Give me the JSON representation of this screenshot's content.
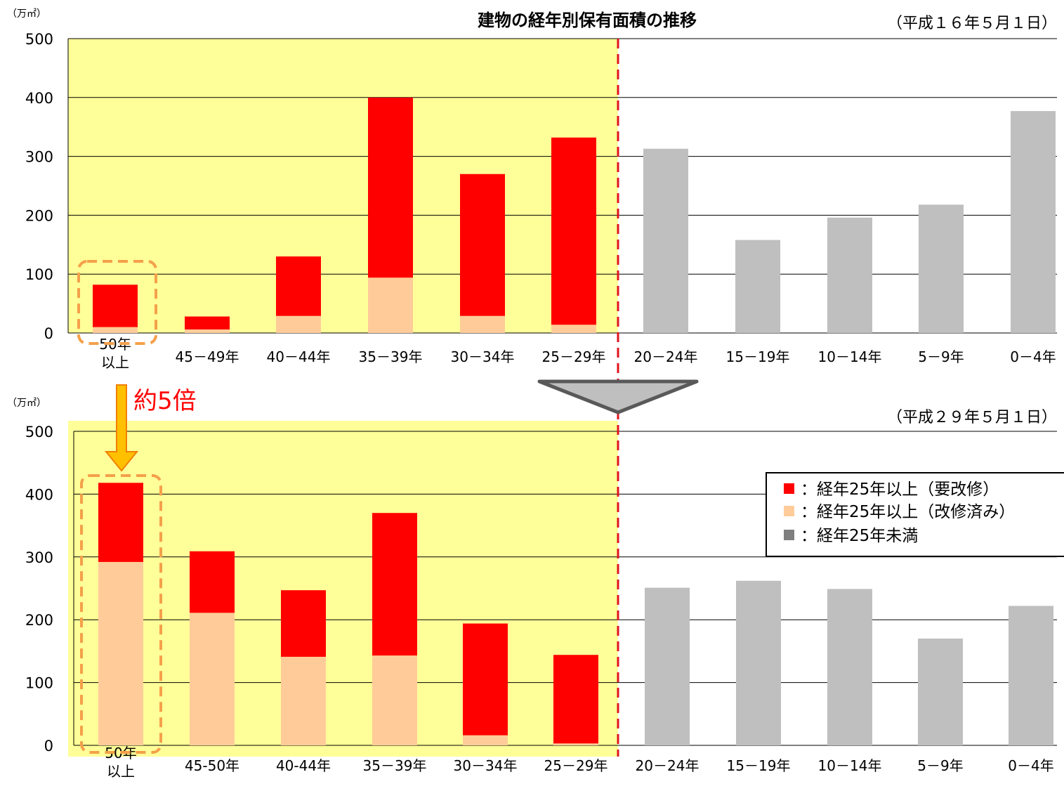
{
  "title": "建物の経年別保有面積の推移",
  "colors": {
    "needs_renovation": "#ff0000",
    "renovated": "#ffcc99",
    "under25": "#bfbfbf",
    "highlight_bg": "#ffff99",
    "dashed_line": "#e0141e",
    "box_outline": "#f4a04a",
    "arrow_fill": "#ffc000",
    "arrow_stroke": "#f08000",
    "annotation": "#ff0000",
    "gridline": "#000000"
  },
  "legend": {
    "items": [
      {
        "symbol": "■",
        "label": "：経年25年以上（要改修）",
        "color": "#ff0000"
      },
      {
        "symbol": "■",
        "label": "：経年25年以上（改修済み）",
        "color": "#ffcc99"
      },
      {
        "symbol": "■",
        "label": "：経年25年未満",
        "color": "#7f7f7f"
      }
    ]
  },
  "annotation": {
    "text": "約5倍"
  },
  "chart_data": [
    {
      "type": "bar",
      "stacked": true,
      "title": "建物の経年別保有面積の推移",
      "date_label": "（平成１６年５月１日）",
      "unit_label": "（万㎡）",
      "ylim": [
        0,
        500
      ],
      "yticks": [
        0,
        100,
        200,
        300,
        400,
        500
      ],
      "grid": true,
      "categories": [
        "50年\n以上",
        "45－49年",
        "40－44年",
        "35－39年",
        "30－34年",
        "25－29年",
        "20－24年",
        "15－19年",
        "10－14年",
        "5－9年",
        "0－4年"
      ],
      "series": [
        {
          "key": "renovated",
          "values": [
            10,
            6,
            29,
            94,
            29,
            14,
            0,
            0,
            0,
            0,
            0
          ]
        },
        {
          "key": "needs_renovation",
          "values": [
            72,
            22,
            101,
            306,
            241,
            318,
            0,
            0,
            0,
            0,
            0
          ]
        },
        {
          "key": "under25",
          "values": [
            0,
            0,
            0,
            0,
            0,
            0,
            313,
            158,
            196,
            218,
            377
          ]
        }
      ]
    },
    {
      "type": "bar",
      "stacked": true,
      "date_label": "（平成２９年５月１日）",
      "unit_label": "（万㎡）",
      "ylim": [
        0,
        500
      ],
      "yticks": [
        0,
        100,
        200,
        300,
        400,
        500
      ],
      "grid": true,
      "categories": [
        "50年\n以上",
        "45-50年",
        "40-44年",
        "35－39年",
        "30－34年",
        "25－29年",
        "20－24年",
        "15－19年",
        "10－14年",
        "5－9年",
        "0－4年"
      ],
      "series": [
        {
          "key": "renovated",
          "values": [
            292,
            211,
            141,
            143,
            16,
            3,
            0,
            0,
            0,
            0,
            0
          ]
        },
        {
          "key": "needs_renovation",
          "values": [
            126,
            98,
            106,
            227,
            178,
            141,
            0,
            0,
            0,
            0,
            0
          ]
        },
        {
          "key": "under25",
          "values": [
            0,
            0,
            0,
            0,
            0,
            0,
            251,
            262,
            249,
            170,
            222
          ]
        }
      ]
    }
  ]
}
